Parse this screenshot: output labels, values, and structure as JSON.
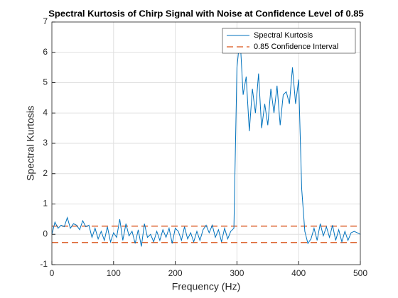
{
  "chart_data": {
    "type": "line",
    "title": "Spectral Kurtosis of Chirp Signal with Noise at Confidence Level of 0.85",
    "xlabel": "Frequency (Hz)",
    "ylabel": "Spectral Kurtosis",
    "x": [
      0,
      5,
      10,
      15,
      20,
      25,
      30,
      35,
      40,
      45,
      50,
      55,
      60,
      65,
      70,
      75,
      80,
      85,
      90,
      95,
      100,
      105,
      110,
      115,
      120,
      125,
      130,
      135,
      140,
      145,
      150,
      155,
      160,
      165,
      170,
      175,
      180,
      185,
      190,
      195,
      200,
      205,
      210,
      215,
      220,
      225,
      230,
      235,
      240,
      245,
      250,
      255,
      260,
      265,
      270,
      275,
      280,
      285,
      290,
      295,
      300,
      305,
      310,
      315,
      320,
      325,
      330,
      335,
      340,
      345,
      350,
      355,
      360,
      365,
      370,
      375,
      380,
      385,
      390,
      395,
      400,
      405,
      410,
      415,
      420,
      425,
      430,
      435,
      440,
      445,
      450,
      455,
      460,
      465,
      470,
      475,
      480,
      485,
      490,
      495,
      500
    ],
    "series": [
      {
        "name": "Spectral Kurtosis",
        "color": "#0072bd",
        "values": [
          0.0,
          0.4,
          0.2,
          0.3,
          0.25,
          0.55,
          0.2,
          0.35,
          0.3,
          0.15,
          0.45,
          0.25,
          0.3,
          -0.1,
          0.2,
          -0.15,
          0.1,
          -0.2,
          0.25,
          -0.25,
          0.05,
          -0.1,
          0.5,
          -0.2,
          0.35,
          -0.05,
          0.1,
          -0.3,
          0.15,
          -0.4,
          0.35,
          -0.1,
          0.0,
          -0.25,
          0.1,
          -0.2,
          0.15,
          -0.1,
          0.2,
          -0.3,
          0.2,
          0.1,
          -0.2,
          0.25,
          -0.15,
          0.05,
          -0.25,
          0.1,
          -0.2,
          0.15,
          0.3,
          0.05,
          0.3,
          -0.1,
          0.15,
          -0.25,
          0.2,
          -0.15,
          0.1,
          0.2,
          5.5,
          6.5,
          4.6,
          5.2,
          3.4,
          4.8,
          4.0,
          5.3,
          3.5,
          4.3,
          3.6,
          4.8,
          4.0,
          4.9,
          3.6,
          4.6,
          4.7,
          4.3,
          5.5,
          4.3,
          5.1,
          1.5,
          0.1,
          -0.3,
          -0.15,
          0.2,
          -0.2,
          0.35,
          -0.05,
          0.25,
          -0.1,
          0.3,
          -0.2,
          0.15,
          -0.25,
          0.1,
          -0.2,
          0.05,
          0.1,
          0.05,
          0.0
        ]
      }
    ],
    "confidence_interval": {
      "name": "0.85 Confidence Interval",
      "color": "#d95319",
      "upper": 0.27,
      "lower": -0.27
    },
    "xlim": [
      0,
      500
    ],
    "xticks": [
      0,
      100,
      200,
      300,
      400,
      500
    ],
    "ylim": [
      -1,
      7
    ],
    "yticks": [
      -1,
      0,
      1,
      2,
      3,
      4,
      5,
      6,
      7
    ],
    "grid": true,
    "legend": "northeast"
  }
}
